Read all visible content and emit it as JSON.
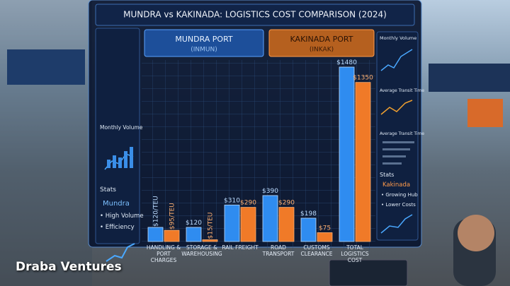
{
  "chart_data": {
    "type": "bar",
    "title": "MUNDRA vs KAKINADA: LOGISTICS COST COMPARISON (2024)",
    "categories": [
      "Handling & Port Charges",
      "Storage & Warehousing",
      "Rail Freight",
      "Road Transport",
      "Customs Clearance",
      "Total Logistics Cost"
    ],
    "series": [
      {
        "name": "MUNDRA PORT",
        "code": "(INMUN)",
        "color": "#2f8cf0",
        "values": [
          120,
          120,
          310,
          390,
          198,
          1480
        ],
        "value_labels": [
          "$120/TEU",
          "$120",
          "$310",
          "$390",
          "$198",
          "$1480"
        ]
      },
      {
        "name": "KAKINADA PORT",
        "code": "(INKAK)",
        "color": "#f07a28",
        "values": [
          95,
          15,
          290,
          290,
          75,
          1350
        ],
        "value_labels": [
          "$95/TEU",
          "$15/TEU",
          "$290",
          "$290",
          "$75",
          "$1350"
        ]
      }
    ]
  },
  "left_panel": {
    "monthly_volume": "Monthly Volume",
    "stats": "Stats",
    "port": "Mundra",
    "items": [
      "High Volume",
      "Efficiency"
    ]
  },
  "right_panel": {
    "monthly_volume": "Monthly Volume",
    "transit_1": "Average Transit Time",
    "transit_2": "Average Transit Time",
    "stats": "Stats",
    "port": "Kakinada",
    "items": [
      "Growing Hub",
      "Lower Costs"
    ]
  },
  "watermark": "Draba Ventures"
}
